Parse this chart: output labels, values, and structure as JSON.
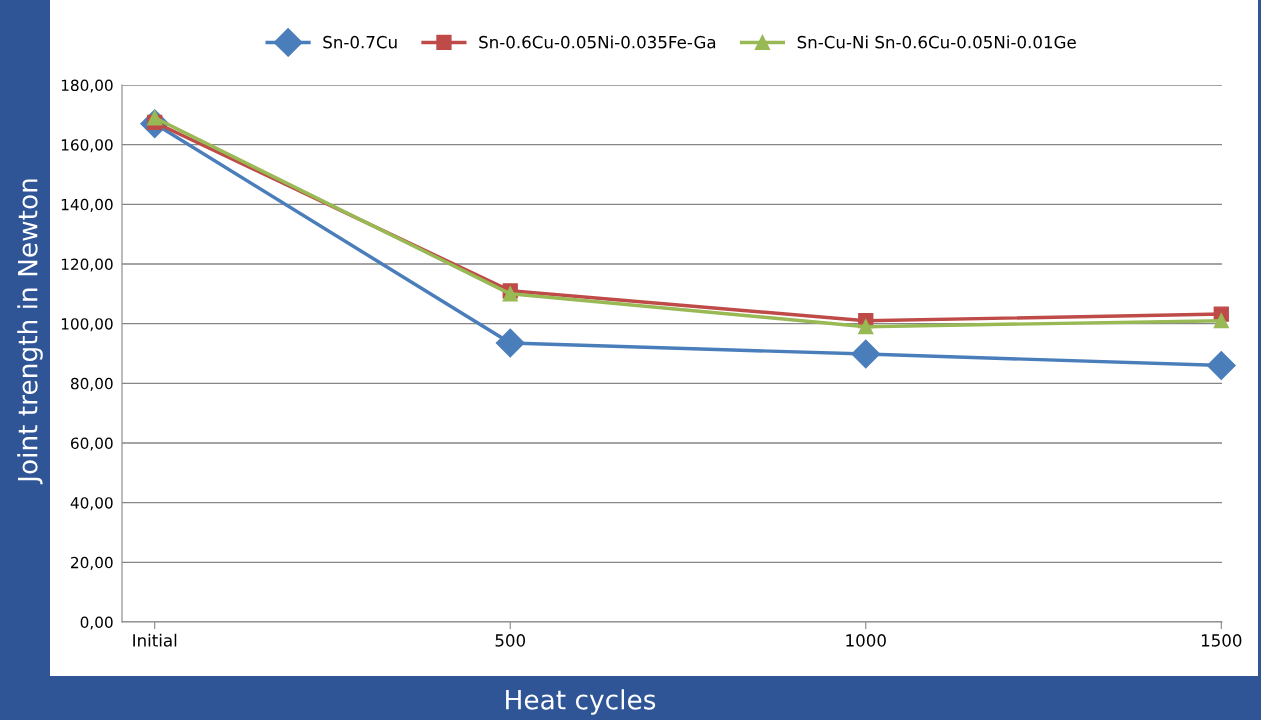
{
  "chart_data": {
    "type": "line",
    "xlabel": "Heat cycles",
    "ylabel": "Joint trength in Newton",
    "categories": [
      "Initial",
      "500",
      "1000",
      "1500"
    ],
    "series": [
      {
        "name": "Sn-0.7Cu",
        "color": "#4a7ebb",
        "marker": "diamond",
        "values": [
          167,
          93.5,
          89.8,
          86
        ]
      },
      {
        "name": "Sn-0.6Cu-0.05Ni-0.035Fe-Ga",
        "color": "#be4b48",
        "marker": "square",
        "values": [
          167.5,
          111,
          101,
          103.2
        ]
      },
      {
        "name": "Sn-Cu-Ni Sn-0.6Cu-0.05Ni-0.01Ge",
        "color": "#98b954",
        "marker": "triangle",
        "values": [
          169,
          110,
          99,
          101
        ]
      }
    ],
    "ylim": [
      0,
      180
    ],
    "yticks": [
      {
        "value": 0,
        "label": "0,00"
      },
      {
        "value": 20,
        "label": "20,00"
      },
      {
        "value": 40,
        "label": "40,00"
      },
      {
        "value": 60,
        "label": "60,00"
      },
      {
        "value": 80,
        "label": "80,00"
      },
      {
        "value": 100,
        "label": "100,00"
      },
      {
        "value": 120,
        "label": "120,00"
      },
      {
        "value": 140,
        "label": "140,00"
      },
      {
        "value": 160,
        "label": "160,00"
      },
      {
        "value": 180,
        "label": "180,00"
      }
    ],
    "grid": "y",
    "legend": "top",
    "line_style": "solid"
  }
}
